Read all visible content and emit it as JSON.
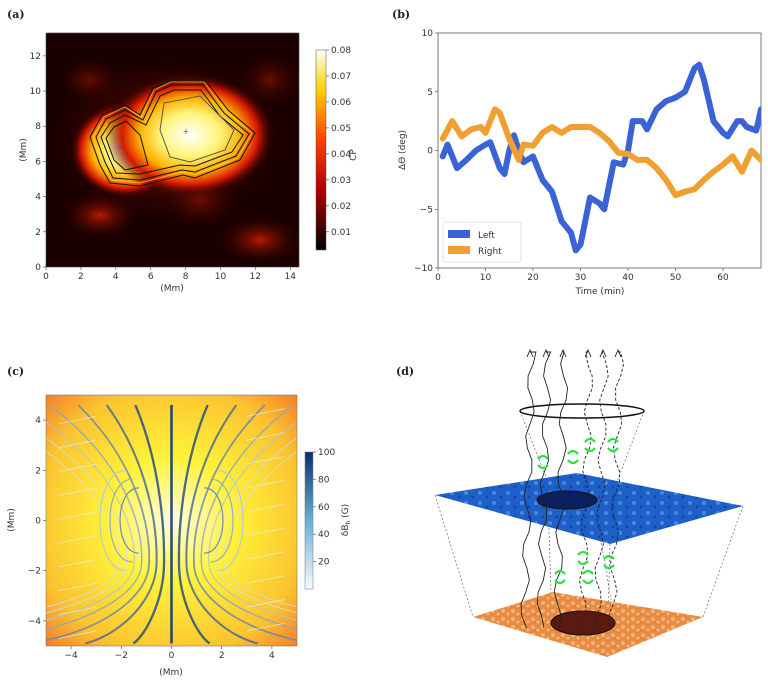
{
  "panels": {
    "a": {
      "label": "(a)"
    },
    "b": {
      "label": "(b)"
    },
    "c": {
      "label": "(c)"
    },
    "d": {
      "label": "(d)"
    }
  },
  "chart_data": [
    {
      "panel": "a",
      "type": "heatmap",
      "xlabel": "(Mm)",
      "ylabel": "(Mm)",
      "xlim": [
        0,
        14.5
      ],
      "ylim": [
        0,
        13.3
      ],
      "xticks": [
        "0",
        "2",
        "4",
        "6",
        "8",
        "10",
        "12",
        "14"
      ],
      "yticks": [
        "0",
        "2",
        "4",
        "6",
        "8",
        "10",
        "12"
      ],
      "colorbar": {
        "label": "CP",
        "ticks": [
          "0.01",
          "0.02",
          "0.03",
          "0.04",
          "0.05",
          "0.06",
          "0.07",
          "0.08"
        ],
        "range": [
          0.003,
          0.08
        ],
        "colormap": "hot"
      },
      "markers": [
        {
          "x": 4.5,
          "y": 6.9,
          "color": "#3355cc"
        },
        {
          "x": 8.1,
          "y": 7.8,
          "color": "#3355cc"
        }
      ]
    },
    {
      "panel": "b",
      "type": "line",
      "xlabel": "Time (min)",
      "ylabel": "ΔΘ (deg)",
      "xlim": [
        0,
        68
      ],
      "ylim": [
        -10,
        10
      ],
      "xticks": [
        "0",
        "10",
        "20",
        "30",
        "40",
        "50",
        "60"
      ],
      "yticks": [
        "−10",
        "−5",
        "0",
        "5",
        "10"
      ],
      "legend": "bottom-left",
      "series": [
        {
          "name": "Left",
          "color": "#3b63d6",
          "x": [
            1,
            2,
            4,
            6,
            8,
            10,
            11,
            13,
            14,
            15,
            16,
            17,
            18,
            20,
            22,
            24,
            26,
            28,
            29,
            30,
            32,
            34,
            35,
            37,
            39,
            40,
            41,
            43,
            44,
            46,
            48,
            50,
            52,
            54,
            55,
            56,
            58,
            59,
            60,
            61,
            63,
            64,
            65,
            67,
            68
          ],
          "y": [
            -0.5,
            0.5,
            -1.5,
            -0.8,
            0,
            0.5,
            0.7,
            -1.5,
            -2,
            0,
            1.3,
            0,
            -1,
            -0.5,
            -2.5,
            -3.5,
            -6,
            -7,
            -8.5,
            -8,
            -4,
            -4.5,
            -5,
            -1,
            -1.2,
            0,
            2.5,
            2.5,
            1.8,
            3.5,
            4.2,
            4.5,
            5,
            7,
            7.3,
            6,
            2.5,
            2,
            1.5,
            1.2,
            2.5,
            2.5,
            2,
            1.7,
            3.5
          ]
        },
        {
          "name": "Right",
          "color": "#f0a030",
          "x": [
            1,
            3,
            5,
            7,
            9,
            10,
            12,
            13,
            15,
            17,
            18,
            20,
            22,
            24,
            26,
            28,
            30,
            32,
            34,
            36,
            38,
            40,
            42,
            44,
            46,
            48,
            50,
            52,
            54,
            56,
            58,
            60,
            62,
            64,
            66,
            68
          ],
          "y": [
            1,
            2.5,
            1.2,
            1.8,
            2,
            1.5,
            3.5,
            3.2,
            1,
            -0.8,
            0.5,
            0.4,
            1.5,
            2,
            1.5,
            2,
            2,
            2,
            1.5,
            0.8,
            -0.2,
            -0.3,
            -0.8,
            -0.8,
            -1.5,
            -2.5,
            -3.8,
            -3.5,
            -3.3,
            -2.5,
            -1.8,
            -1.2,
            -0.5,
            -1.8,
            0,
            -0.8
          ]
        }
      ]
    },
    {
      "panel": "c",
      "type": "streamplot",
      "xlabel": "(Mm)",
      "ylabel": "(Mm)",
      "xlim": [
        -5,
        5
      ],
      "ylim": [
        -5,
        5
      ],
      "xticks": [
        "−4",
        "−2",
        "0",
        "2",
        "4"
      ],
      "yticks": [
        "−4",
        "−2",
        "0",
        "2",
        "4"
      ],
      "colorbar": {
        "label": "δB",
        "label_sub": "h",
        "label_unit": " (G)",
        "ticks": [
          "20",
          "40",
          "60",
          "80",
          "100"
        ],
        "range": [
          0,
          100
        ],
        "colormap": "Blues"
      }
    }
  ]
}
